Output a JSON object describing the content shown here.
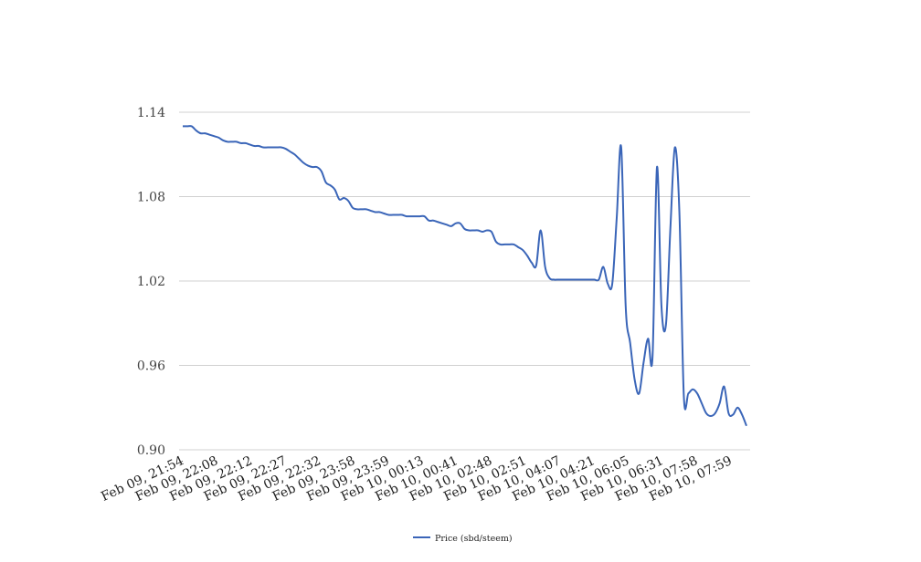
{
  "chart_data": {
    "type": "line",
    "title": "",
    "xlabel": "",
    "ylabel": "",
    "ylim": [
      0.9,
      1.14
    ],
    "y_ticks": [
      "0.90",
      "0.96",
      "1.02",
      "1.08",
      "1.14"
    ],
    "grid": true,
    "legend_position": "bottom-center",
    "x_tick_labels": [
      "Feb 09, 21:54",
      "Feb 09, 22:08",
      "Feb 09, 22:12",
      "Feb 09, 22:27",
      "Feb 09, 22:32",
      "Feb 09, 23:58",
      "Feb 09, 23:59",
      "Feb 10, 00:13",
      "Feb 10, 00:41",
      "Feb 10, 02:48",
      "Feb 10, 02:51",
      "Feb 10, 04:07",
      "Feb 10, 04:21",
      "Feb 10, 06:05",
      "Feb 10, 06:31",
      "Feb 10, 07:58",
      "Feb 10, 07:59"
    ],
    "series": [
      {
        "name": "Price (sbd/steem)",
        "color": "#3a65b8",
        "values": [
          1.13,
          1.13,
          1.13,
          1.127,
          1.125,
          1.125,
          1.124,
          1.123,
          1.122,
          1.12,
          1.119,
          1.119,
          1.119,
          1.118,
          1.118,
          1.117,
          1.116,
          1.116,
          1.115,
          1.115,
          1.115,
          1.115,
          1.115,
          1.114,
          1.112,
          1.11,
          1.107,
          1.104,
          1.102,
          1.101,
          1.101,
          1.098,
          1.09,
          1.088,
          1.085,
          1.078,
          1.079,
          1.077,
          1.072,
          1.071,
          1.071,
          1.071,
          1.07,
          1.069,
          1.069,
          1.068,
          1.067,
          1.067,
          1.067,
          1.067,
          1.066,
          1.066,
          1.066,
          1.066,
          1.066,
          1.063,
          1.063,
          1.062,
          1.061,
          1.06,
          1.059,
          1.061,
          1.061,
          1.057,
          1.056,
          1.056,
          1.056,
          1.055,
          1.056,
          1.055,
          1.048,
          1.046,
          1.046,
          1.046,
          1.046,
          1.044,
          1.042,
          1.038,
          1.033,
          1.031,
          1.056,
          1.03,
          1.022,
          1.021,
          1.021,
          1.021,
          1.021,
          1.021,
          1.021,
          1.021,
          1.021,
          1.021,
          1.021,
          1.021,
          1.03,
          1.018,
          1.018,
          1.065,
          1.115,
          1.002,
          0.976,
          0.95,
          0.94,
          0.962,
          0.979,
          0.966,
          1.101,
          1.002,
          0.989,
          1.058,
          1.115,
          1.069,
          0.938,
          0.94,
          0.943,
          0.94,
          0.933,
          0.926,
          0.924,
          0.926,
          0.933,
          0.945,
          0.926,
          0.925,
          0.93,
          0.925,
          0.917
        ]
      }
    ]
  }
}
